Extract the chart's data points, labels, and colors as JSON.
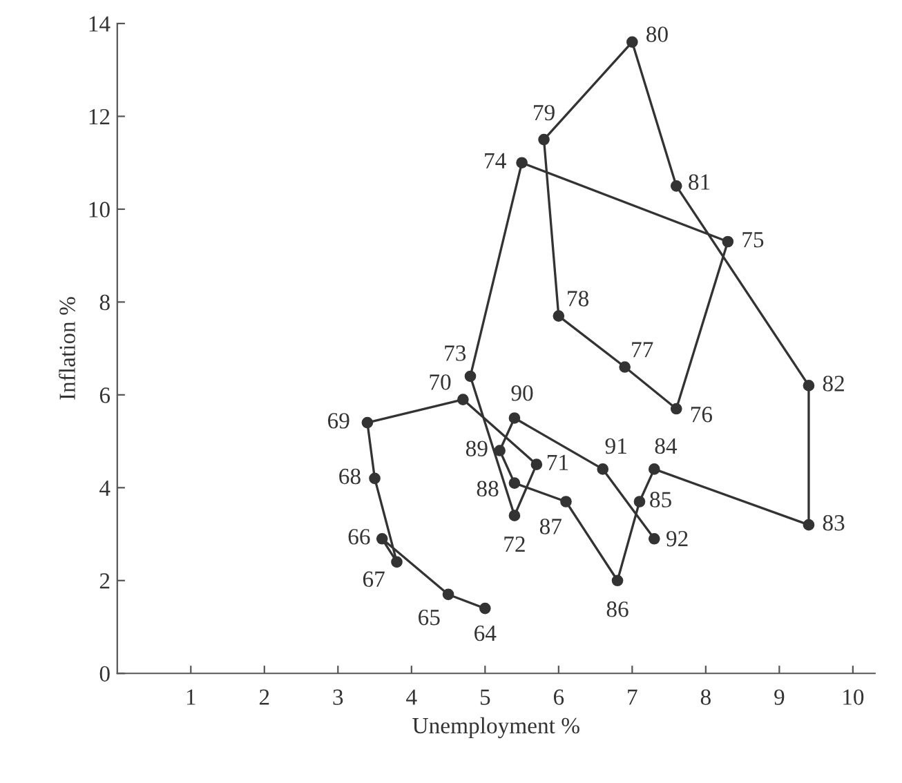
{
  "chart_data": {
    "type": "line",
    "xlabel": "Unemployment %",
    "ylabel": "Inflation %",
    "xlim": [
      0,
      10.3
    ],
    "ylim": [
      0,
      14
    ],
    "xticks": [
      1,
      2,
      3,
      4,
      5,
      6,
      7,
      8,
      9,
      10
    ],
    "yticks": [
      0,
      2,
      4,
      6,
      8,
      10,
      12,
      14
    ],
    "grid": false,
    "marker": "circle",
    "line_style": "solid",
    "series": [
      {
        "color": "#333333",
        "x": [
          5.0,
          4.5,
          3.6,
          3.8,
          3.5,
          3.4,
          4.7,
          5.7,
          5.4,
          4.8,
          5.5,
          8.3,
          7.6,
          6.9,
          6.0,
          5.8,
          7.0,
          7.6,
          9.4,
          9.4,
          7.3,
          7.1,
          6.8,
          6.1,
          5.4,
          5.2,
          5.4,
          6.6,
          7.3
        ],
        "values": [
          1.4,
          1.7,
          2.9,
          2.4,
          4.2,
          5.4,
          5.9,
          4.5,
          3.4,
          6.4,
          11.0,
          9.3,
          5.7,
          6.6,
          7.7,
          11.5,
          13.6,
          10.5,
          6.2,
          3.2,
          4.4,
          3.7,
          2.0,
          3.7,
          4.1,
          4.8,
          5.5,
          4.4,
          2.9
        ]
      }
    ],
    "annotations": [
      {
        "text": "64",
        "x": 5.0,
        "y": 1.4
      },
      {
        "text": "65",
        "x": 4.5,
        "y": 1.7
      },
      {
        "text": "66",
        "x": 3.6,
        "y": 2.9
      },
      {
        "text": "67",
        "x": 3.8,
        "y": 2.4
      },
      {
        "text": "68",
        "x": 3.5,
        "y": 4.2
      },
      {
        "text": "69",
        "x": 3.4,
        "y": 5.4
      },
      {
        "text": "70",
        "x": 4.7,
        "y": 5.9
      },
      {
        "text": "71",
        "x": 5.7,
        "y": 4.5
      },
      {
        "text": "72",
        "x": 5.4,
        "y": 3.4
      },
      {
        "text": "73",
        "x": 4.8,
        "y": 6.4
      },
      {
        "text": "74",
        "x": 5.5,
        "y": 11.0
      },
      {
        "text": "75",
        "x": 8.3,
        "y": 9.3
      },
      {
        "text": "76",
        "x": 7.6,
        "y": 5.7
      },
      {
        "text": "77",
        "x": 6.9,
        "y": 6.6
      },
      {
        "text": "78",
        "x": 6.0,
        "y": 7.7
      },
      {
        "text": "79",
        "x": 5.8,
        "y": 11.5
      },
      {
        "text": "80",
        "x": 7.0,
        "y": 13.6
      },
      {
        "text": "81",
        "x": 7.6,
        "y": 10.5
      },
      {
        "text": "82",
        "x": 9.4,
        "y": 6.2
      },
      {
        "text": "83",
        "x": 9.4,
        "y": 3.2
      },
      {
        "text": "84",
        "x": 7.3,
        "y": 4.4
      },
      {
        "text": "85",
        "x": 7.1,
        "y": 3.7
      },
      {
        "text": "86",
        "x": 6.8,
        "y": 2.0
      },
      {
        "text": "87",
        "x": 6.1,
        "y": 3.7
      },
      {
        "text": "88",
        "x": 5.4,
        "y": 4.1
      },
      {
        "text": "89",
        "x": 5.2,
        "y": 4.8
      },
      {
        "text": "90",
        "x": 5.4,
        "y": 5.5
      },
      {
        "text": "91",
        "x": 6.6,
        "y": 4.4
      },
      {
        "text": "92",
        "x": 7.3,
        "y": 2.9
      }
    ]
  }
}
